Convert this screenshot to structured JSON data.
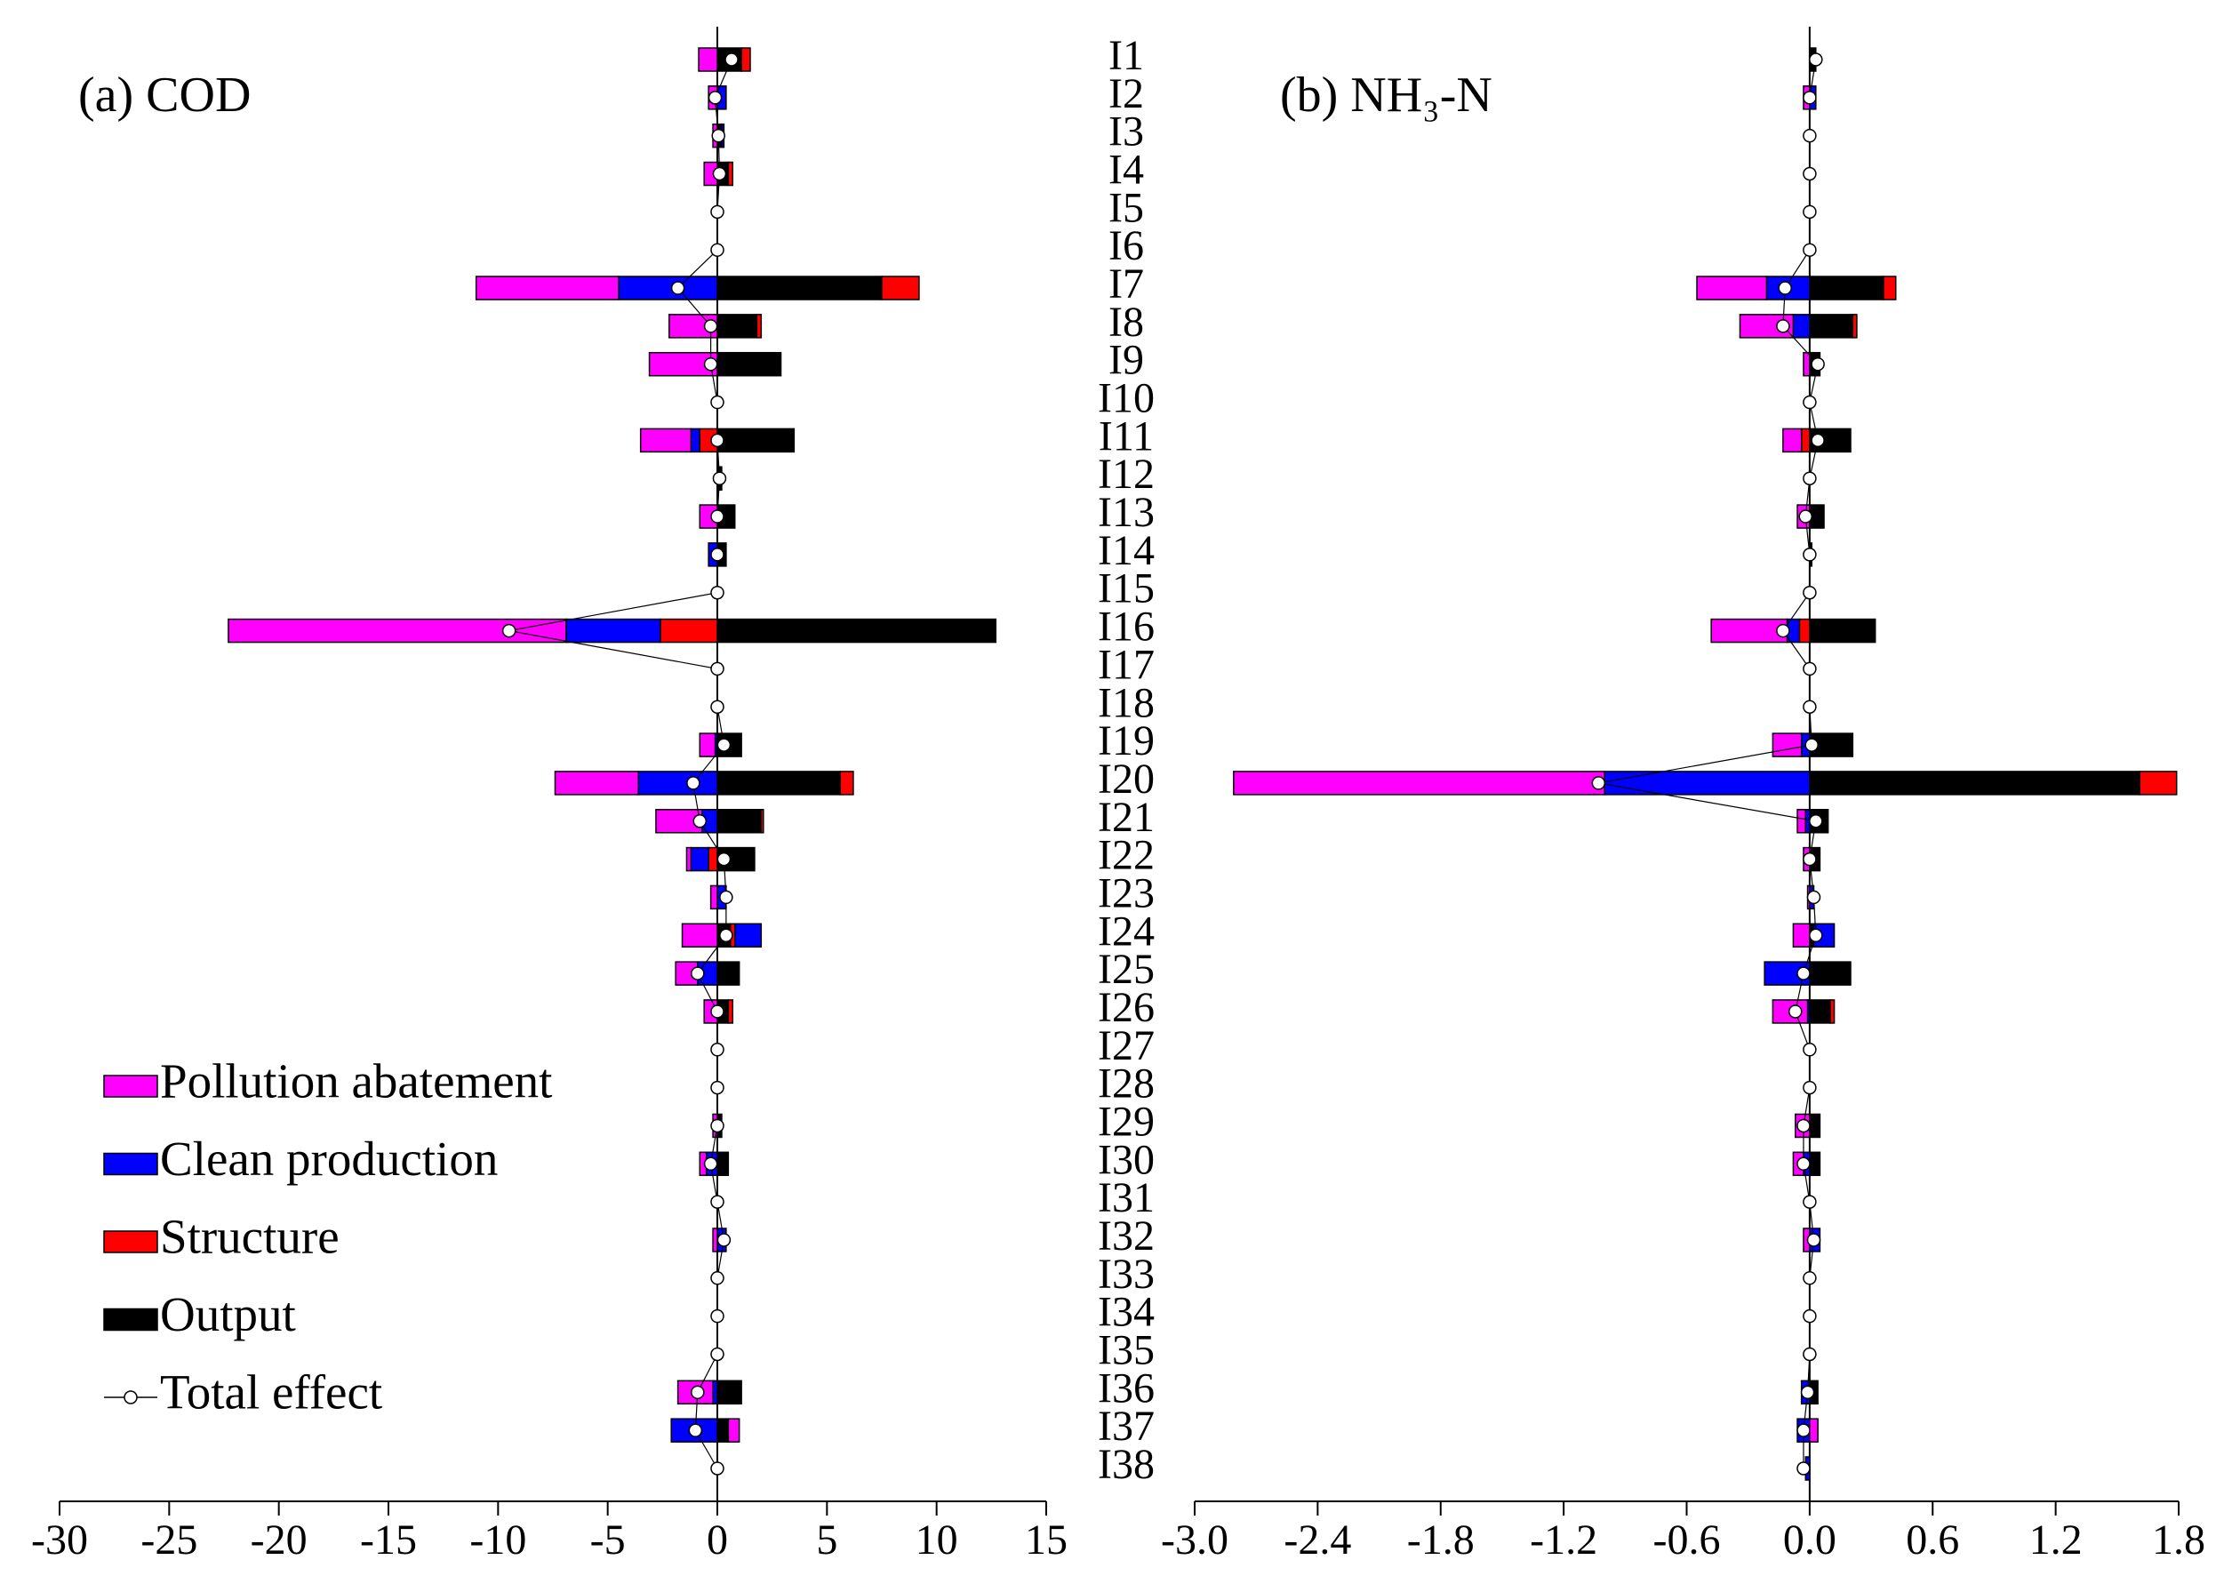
{
  "chart_data": [
    {
      "type": "bar",
      "title": "(a) COD",
      "legend": "lower left",
      "categories": [
        "I1",
        "I2",
        "I3",
        "I4",
        "I5",
        "I6",
        "I7",
        "I8",
        "I9",
        "I10",
        "I11",
        "I12",
        "I13",
        "I14",
        "I15",
        "I16",
        "I17",
        "I18",
        "I19",
        "I20",
        "I21",
        "I22",
        "I23",
        "I24",
        "I25",
        "I26",
        "I27",
        "I28",
        "I29",
        "I30",
        "I31",
        "I32",
        "I33",
        "I34",
        "I35",
        "I36",
        "I37",
        "I38"
      ],
      "xlim": [
        -30,
        15
      ],
      "xticks": [
        -30,
        -25,
        -20,
        -15,
        -10,
        -5,
        0,
        5,
        10,
        15
      ],
      "series": [
        {
          "name": "Pollution abatement",
          "color": "#ff00ff",
          "values": [
            -0.85,
            -0.4,
            -0.2,
            -0.6,
            0,
            0,
            -6.5,
            -2.2,
            -3.1,
            0,
            -2.3,
            0,
            -0.8,
            0,
            0,
            -15.4,
            0,
            0,
            -0.7,
            -3.8,
            -2.1,
            -0.2,
            -0.3,
            -1.6,
            -1.0,
            -0.6,
            0,
            0,
            -0.2,
            -0.3,
            0,
            -0.2,
            0,
            0,
            0,
            -1.6,
            0.5,
            0
          ]
        },
        {
          "name": "Clean production",
          "color": "#0000ff",
          "values": [
            0,
            0.4,
            0.1,
            0,
            0,
            0,
            -4.5,
            0,
            0,
            0,
            -0.4,
            0,
            0,
            -0.4,
            0,
            -4.3,
            0,
            0,
            -0.1,
            -3.6,
            -0.7,
            -0.8,
            0.4,
            1.2,
            -0.9,
            0,
            0,
            0,
            0,
            -0.5,
            0,
            0.4,
            0,
            0,
            0,
            -0.2,
            -2.1,
            0
          ]
        },
        {
          "name": "Structure",
          "color": "#ff0000",
          "values": [
            0.4,
            0,
            0,
            0.2,
            0,
            0,
            1.7,
            0.2,
            0,
            0,
            -0.8,
            0,
            0,
            0,
            0,
            -2.6,
            0,
            0,
            0,
            0.6,
            0.1,
            -0.4,
            0,
            0.2,
            0,
            0.2,
            0,
            0,
            0,
            0,
            0,
            0,
            0,
            0,
            0,
            0,
            0,
            0
          ]
        },
        {
          "name": "Output",
          "color": "#000000",
          "values": [
            1.1,
            0,
            0.2,
            0.5,
            0,
            0,
            7.5,
            1.8,
            2.9,
            0,
            3.5,
            0.2,
            0.8,
            0.4,
            0,
            12.7,
            0,
            0,
            1.1,
            5.6,
            2.0,
            1.7,
            0,
            0.6,
            1.0,
            0.5,
            0,
            0,
            0.2,
            0.5,
            0,
            0,
            0,
            0,
            0,
            1.1,
            0.5,
            0
          ]
        },
        {
          "name": "Total effect",
          "type": "line",
          "color": "#000000",
          "values": [
            0.65,
            -0.1,
            0.05,
            0.1,
            0,
            0,
            -1.8,
            -0.3,
            -0.3,
            0,
            0,
            0.1,
            0,
            0,
            0,
            -9.5,
            0,
            0,
            0.3,
            -1.1,
            -0.8,
            0.3,
            0.4,
            0.4,
            -0.9,
            0,
            0,
            0,
            0,
            -0.3,
            0,
            0.3,
            0,
            0,
            0,
            -0.9,
            -1.0,
            0
          ]
        }
      ]
    },
    {
      "type": "bar",
      "title": "(b) NH₃-N",
      "categories": [
        "I1",
        "I2",
        "I3",
        "I4",
        "I5",
        "I6",
        "I7",
        "I8",
        "I9",
        "I10",
        "I11",
        "I12",
        "I13",
        "I14",
        "I15",
        "I16",
        "I17",
        "I18",
        "I19",
        "I20",
        "I21",
        "I22",
        "I23",
        "I24",
        "I25",
        "I26",
        "I27",
        "I28",
        "I29",
        "I30",
        "I31",
        "I32",
        "I33",
        "I34",
        "I35",
        "I36",
        "I37",
        "I38"
      ],
      "xlim": [
        -3,
        1.8
      ],
      "xticks": [
        {
          "value": -3,
          "label": "-3.0"
        },
        -2.4,
        -1.8,
        -1.2,
        -0.6,
        {
          "value": 0,
          "label": "0.0"
        },
        0.6,
        1.2,
        1.8
      ],
      "series": [
        {
          "name": "Pollution abatement",
          "color": "#ff00ff",
          "values": [
            0,
            -0.03,
            0,
            0,
            0,
            0,
            -0.34,
            -0.26,
            -0.03,
            0,
            -0.09,
            0,
            -0.06,
            0,
            0,
            -0.37,
            0,
            0,
            -0.14,
            -1.81,
            -0.04,
            -0.03,
            -0.01,
            -0.08,
            0,
            -0.17,
            0,
            0,
            -0.07,
            -0.05,
            0,
            -0.03,
            0,
            0,
            0,
            0,
            0.04,
            0
          ]
        },
        {
          "name": "Clean production",
          "color": "#0000ff",
          "values": [
            0,
            0.03,
            0,
            0,
            0,
            0,
            -0.21,
            -0.08,
            0,
            0,
            0,
            0,
            0,
            0,
            0,
            -0.06,
            0,
            0,
            -0.04,
            -1.0,
            -0.02,
            0,
            0.02,
            0.1,
            -0.22,
            -0.01,
            0,
            0,
            0,
            -0.03,
            0,
            0.05,
            0,
            0,
            0,
            -0.04,
            -0.06,
            -0.02
          ]
        },
        {
          "name": "Structure",
          "color": "#ff0000",
          "values": [
            0,
            0,
            0,
            0,
            0,
            0,
            0.06,
            0.02,
            0,
            0,
            -0.04,
            0,
            0,
            0,
            0,
            -0.05,
            0,
            0,
            0,
            0.18,
            0,
            0,
            0,
            0,
            0,
            0.02,
            0,
            0,
            0,
            0,
            0,
            0,
            0,
            0,
            0,
            0,
            0,
            0
          ]
        },
        {
          "name": "Output",
          "color": "#000000",
          "values": [
            0.03,
            0,
            0,
            0,
            0,
            0,
            0.36,
            0.21,
            0.05,
            0,
            0.2,
            0,
            0.07,
            0.01,
            0,
            0.32,
            0,
            0,
            0.21,
            1.61,
            0.09,
            0.05,
            0,
            0.02,
            0.2,
            0.1,
            0,
            0,
            0.05,
            0.05,
            0,
            0,
            0,
            0,
            0,
            0.04,
            0,
            0
          ]
        },
        {
          "name": "Total effect",
          "type": "line",
          "color": "#000000",
          "values": [
            0.03,
            0,
            0,
            0,
            0,
            0,
            -0.12,
            -0.13,
            0.04,
            0,
            0.04,
            0,
            -0.02,
            0,
            0,
            -0.13,
            0,
            0,
            0.01,
            -1.03,
            0.03,
            0,
            0.02,
            0.03,
            -0.03,
            -0.07,
            0,
            0,
            -0.03,
            -0.03,
            0,
            0.02,
            0,
            0,
            0,
            -0.01,
            -0.03,
            -0.03
          ]
        }
      ]
    }
  ]
}
